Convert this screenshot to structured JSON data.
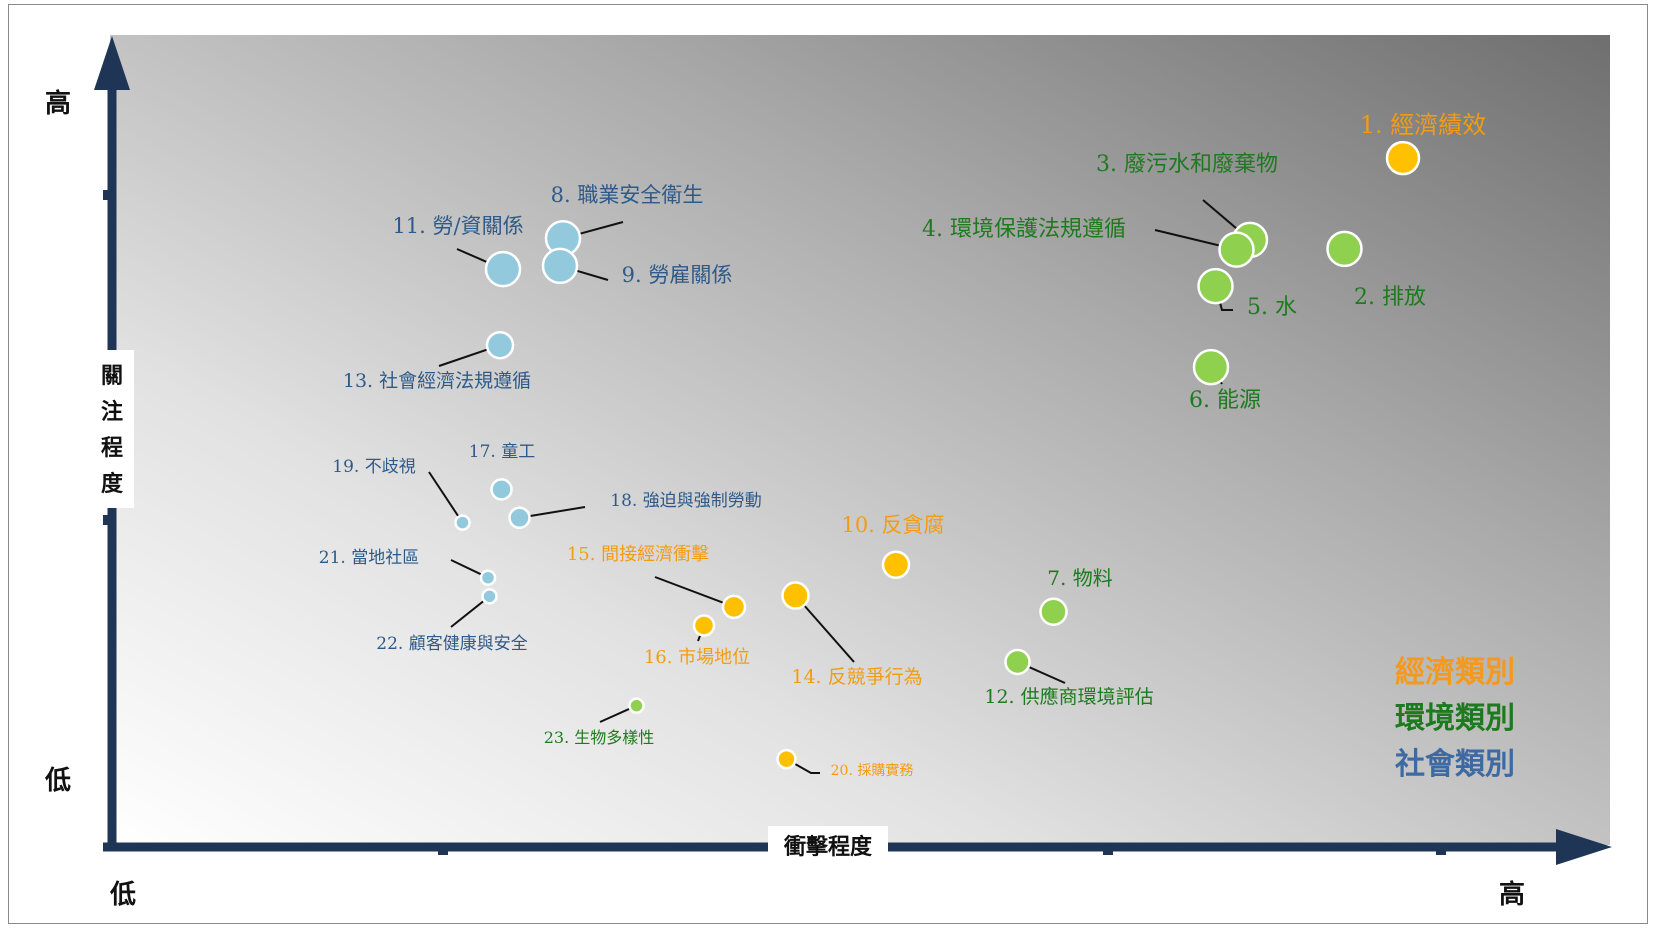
{
  "chart_data": {
    "type": "scatter",
    "title": "",
    "xlabel": "衝擊程度",
    "ylabel": "關注程度",
    "x_low_label": "低",
    "x_high_label": "高",
    "y_low_label": "低",
    "y_high_label": "高",
    "xlim": [
      0,
      100
    ],
    "ylim": [
      0,
      100
    ],
    "categories": [
      {
        "name": "經濟類別",
        "color": "#f39c12",
        "fill": "#ffc000",
        "legend_color": "#f39a1e"
      },
      {
        "name": "環境類別",
        "color": "#1e7a1e",
        "fill": "#8fd14f",
        "legend_color": "#1e7a1e"
      },
      {
        "name": "社會類別",
        "color": "#2e5a8a",
        "fill": "#92c9dc",
        "legend_color": "#3d6aa3"
      }
    ],
    "points": [
      {
        "label": "1. 經濟績效",
        "category": 0,
        "x": 86.2,
        "y": 84.8,
        "size": 16
      },
      {
        "label": "2. 排放",
        "category": 1,
        "x": 82.3,
        "y": 73.6,
        "size": 17
      },
      {
        "label": "3. 廢污水和廢棄物",
        "category": 1,
        "x": 76.0,
        "y": 74.7,
        "size": 17
      },
      {
        "label": "4. 環境保護法規遵循",
        "category": 1,
        "x": 75.1,
        "y": 73.5,
        "size": 17
      },
      {
        "label": "5. 水",
        "category": 1,
        "x": 73.7,
        "y": 69.0,
        "size": 17
      },
      {
        "label": "6. 能源",
        "category": 1,
        "x": 73.4,
        "y": 59.0,
        "size": 17
      },
      {
        "label": "7. 物料",
        "category": 1,
        "x": 62.9,
        "y": 28.8,
        "size": 13
      },
      {
        "label": "8. 職業安全衛生",
        "category": 2,
        "x": 30.2,
        "y": 74.9,
        "size": 17
      },
      {
        "label": "9. 勞雇關係",
        "category": 2,
        "x": 30.0,
        "y": 71.5,
        "size": 17
      },
      {
        "label": "10. 反貪腐",
        "category": 0,
        "x": 52.4,
        "y": 34.6,
        "size": 13
      },
      {
        "label": "11. 勞/資關係",
        "category": 2,
        "x": 26.2,
        "y": 71.1,
        "size": 17
      },
      {
        "label": "12. 供應商環境評估",
        "category": 1,
        "x": 60.5,
        "y": 22.6,
        "size": 12
      },
      {
        "label": "13. 社會經濟法規遵循",
        "category": 2,
        "x": 26.0,
        "y": 61.7,
        "size": 13
      },
      {
        "label": "14. 反競爭行為",
        "category": 0,
        "x": 45.7,
        "y": 30.8,
        "size": 13
      },
      {
        "label": "15. 間接經濟衝擊",
        "category": 0,
        "x": 41.6,
        "y": 29.4,
        "size": 11
      },
      {
        "label": "16. 市場地位",
        "category": 0,
        "x": 39.6,
        "y": 27.1,
        "size": 10
      },
      {
        "label": "17. 童工",
        "category": 2,
        "x": 26.1,
        "y": 43.9,
        "size": 10
      },
      {
        "label": "18. 強迫與強制勞動",
        "category": 2,
        "x": 27.3,
        "y": 40.4,
        "size": 10
      },
      {
        "label": "19. 不歧視",
        "category": 2,
        "x": 23.5,
        "y": 39.8,
        "size": 7
      },
      {
        "label": "20. 採購實務",
        "category": 0,
        "x": 45.1,
        "y": 10.6,
        "size": 9
      },
      {
        "label": "21. 當地社區",
        "category": 2,
        "x": 25.2,
        "y": 33.0,
        "size": 7
      },
      {
        "label": "22. 顧客健康與安全",
        "category": 2,
        "x": 25.3,
        "y": 30.7,
        "size": 7
      },
      {
        "label": "23. 生物多樣性",
        "category": 1,
        "x": 35.1,
        "y": 17.2,
        "size": 7
      }
    ]
  }
}
